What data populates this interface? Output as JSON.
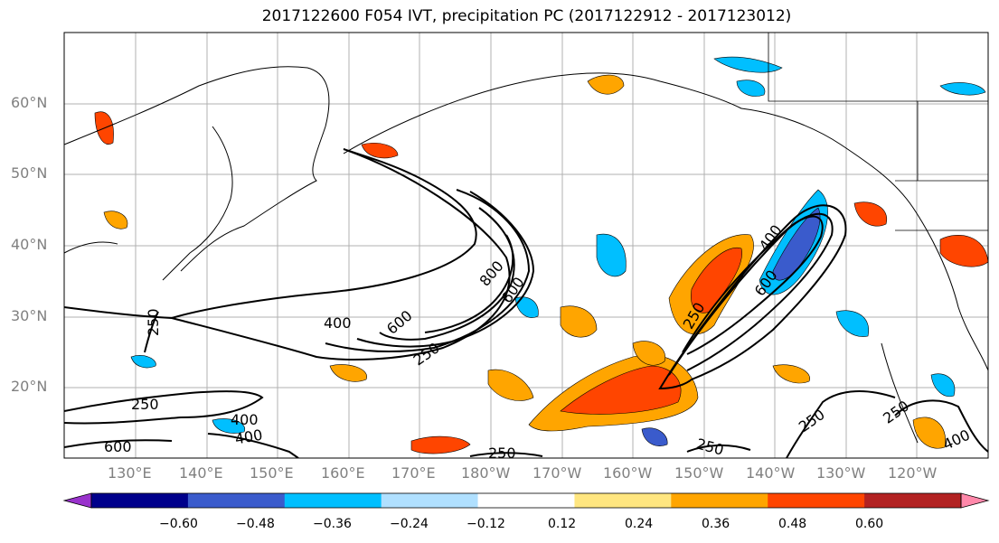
{
  "title": "2017122600 F054 IVT, precipitation PC (2017122912 - 2017123012)",
  "lat_labels": [
    "60°N",
    "50°N",
    "40°N",
    "30°N",
    "20°N"
  ],
  "lon_labels": [
    "130°E",
    "140°E",
    "150°E",
    "160°E",
    "170°E",
    "180°W",
    "170°W",
    "160°W",
    "150°W",
    "140°W",
    "130°W",
    "120°W"
  ],
  "colorbar": {
    "ticks": [
      "−0.60",
      "−0.48",
      "−0.36",
      "−0.24",
      "−0.12",
      "0.12",
      "0.24",
      "0.36",
      "0.48",
      "0.60"
    ],
    "colors": [
      "#9932cc",
      "#00008b",
      "#3a5bcc",
      "#00bfff",
      "#b0e0ff",
      "#ffffff",
      "#ffe680",
      "#ffa500",
      "#ff4500",
      "#b22222",
      "#ff88aa"
    ]
  },
  "contour_labels": [
    "250",
    "400",
    "600",
    "800",
    "250",
    "400",
    "600",
    "250",
    "400",
    "600",
    "250",
    "400",
    "250",
    "250",
    "250",
    "400",
    "600",
    "250"
  ]
}
